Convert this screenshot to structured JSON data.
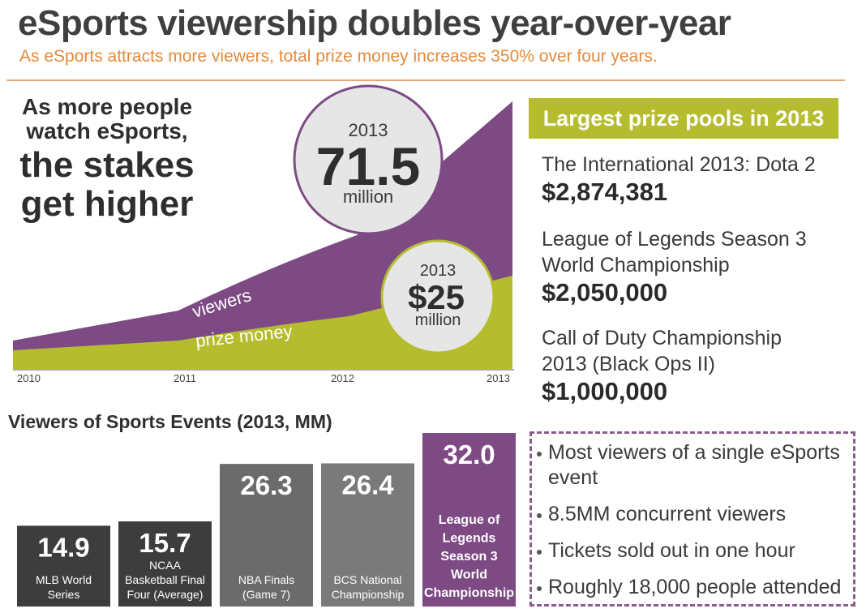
{
  "header": {
    "title": "eSports viewership doubles year-over-year",
    "subtitle": "As eSports attracts more viewers, total prize money increases 350% over four years."
  },
  "headline": {
    "line1": "As more people",
    "line2": "watch eSports,",
    "line3": "the stakes",
    "line4": "get higher"
  },
  "colors": {
    "viewers": "#7d4a84",
    "prize": "#b5bd2e",
    "title": "#3f3f3f",
    "accent": "#e38a3c"
  },
  "chart_data": [
    {
      "type": "area",
      "x": [
        "2010",
        "2011",
        "2012",
        "2013"
      ],
      "series": [
        {
          "name": "viewers",
          "label": "viewers"
        },
        {
          "name": "prize money",
          "label": "prize money"
        }
      ],
      "callouts": [
        {
          "series": "viewers",
          "year": "2013",
          "value": "71.5",
          "unit": "million"
        },
        {
          "series": "prize money",
          "year": "2013",
          "value": "$25",
          "unit": "million"
        }
      ]
    },
    {
      "type": "bar",
      "title": "Viewers of Sports Events (2013, MM)",
      "categories": [
        "MLB World Series",
        "NCAA Basketball Final Four (Average)",
        "NBA Finals (Game 7)",
        "BCS National Championship",
        "League of Legends Season 3 World Championship"
      ],
      "category_lines": [
        [
          "MLB World",
          "Series"
        ],
        [
          "NCAA",
          "Basketball Final",
          "Four (Average)"
        ],
        [
          "NBA Finals",
          "(Game 7)"
        ],
        [
          "BCS National",
          "Championship"
        ],
        [
          "League of",
          "Legends",
          "Season 3",
          "World",
          "Championship"
        ]
      ],
      "values": [
        14.9,
        15.7,
        26.3,
        26.4,
        32.0
      ],
      "value_labels": [
        "14.9",
        "15.7",
        "26.3",
        "26.4",
        "32.0"
      ],
      "highlight_index": 4,
      "ylim": [
        0,
        32
      ]
    }
  ],
  "prize_pools": {
    "title": "Largest prize pools in 2013",
    "items": [
      {
        "name_lines": [
          "The International 2013: Dota 2"
        ],
        "amount": "$2,874,381"
      },
      {
        "name_lines": [
          "League of Legends Season 3",
          "World Championship"
        ],
        "amount": "$2,050,000"
      },
      {
        "name_lines": [
          "Call of Duty Championship",
          "2013 (Black Ops II)"
        ],
        "amount": "$1,000,000"
      }
    ]
  },
  "facts": [
    "Most viewers of a single eSports event",
    "8.5MM concurrent viewers",
    "Tickets sold out in one hour",
    "Roughly 18,000 people attended"
  ]
}
